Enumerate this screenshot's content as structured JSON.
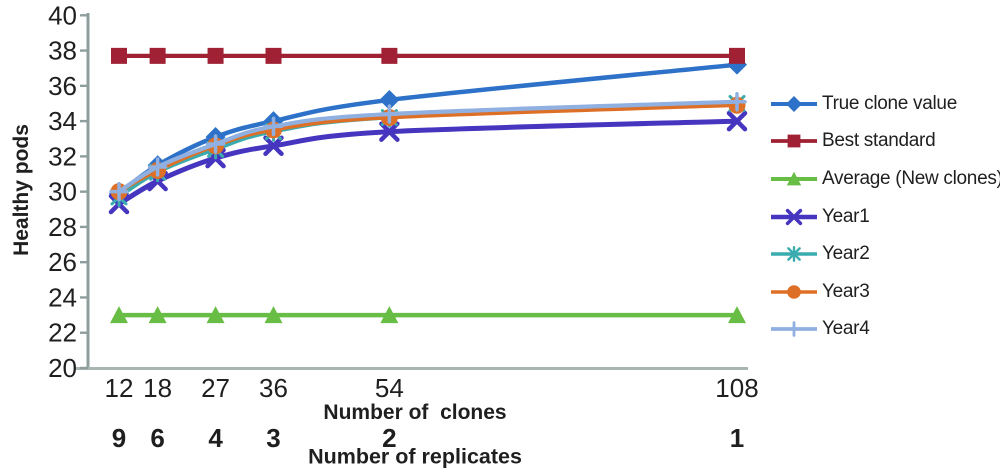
{
  "chart_data": {
    "type": "line",
    "title": "",
    "xlabel": "Number of  clones",
    "xlabel2": "Number of replicates",
    "ylabel": "Healthy pods",
    "x": [
      12,
      18,
      27,
      36,
      54,
      108
    ],
    "x2_replicates": [
      9,
      6,
      4,
      3,
      2,
      1
    ],
    "ylim": [
      20,
      40
    ],
    "ytick_step": 2,
    "grid": false,
    "legend_position": "right",
    "series": [
      {
        "name": "True clone value",
        "color": "#2d72c8",
        "marker": "diamond",
        "width": 4.5,
        "values": [
          29.9,
          31.5,
          33.1,
          34.0,
          35.2,
          37.2
        ]
      },
      {
        "name": "Best standard",
        "color": "#9f2133",
        "marker": "square",
        "width": 4.2,
        "values": [
          37.7,
          37.7,
          37.7,
          37.7,
          37.7,
          37.7
        ]
      },
      {
        "name": "Average (New clones)",
        "color": "#68bd44",
        "marker": "triangle",
        "width": 4.5,
        "values": [
          23.0,
          23.0,
          23.0,
          23.0,
          23.0,
          23.0
        ]
      },
      {
        "name": "Year1",
        "color": "#4636bf",
        "marker": "x",
        "width": 5.0,
        "values": [
          29.3,
          30.6,
          31.9,
          32.6,
          33.4,
          34.0
        ]
      },
      {
        "name": "Year2",
        "color": "#3aacb0",
        "marker": "asterisk",
        "width": 3.6,
        "values": [
          29.7,
          31.1,
          32.4,
          33.4,
          34.2,
          35.0
        ]
      },
      {
        "name": "Year3",
        "color": "#dd7026",
        "marker": "circle",
        "width": 3.6,
        "values": [
          30.0,
          31.2,
          32.6,
          33.5,
          34.2,
          34.9
        ]
      },
      {
        "name": "Year4",
        "color": "#8fb0e0",
        "marker": "plus",
        "width": 4.2,
        "values": [
          30.0,
          31.4,
          32.7,
          33.7,
          34.4,
          35.1
        ]
      }
    ]
  },
  "colors": {
    "axis": "#8e9e9c",
    "axis_bottom": "#a9b5b3",
    "text": "#1f1f1f"
  }
}
